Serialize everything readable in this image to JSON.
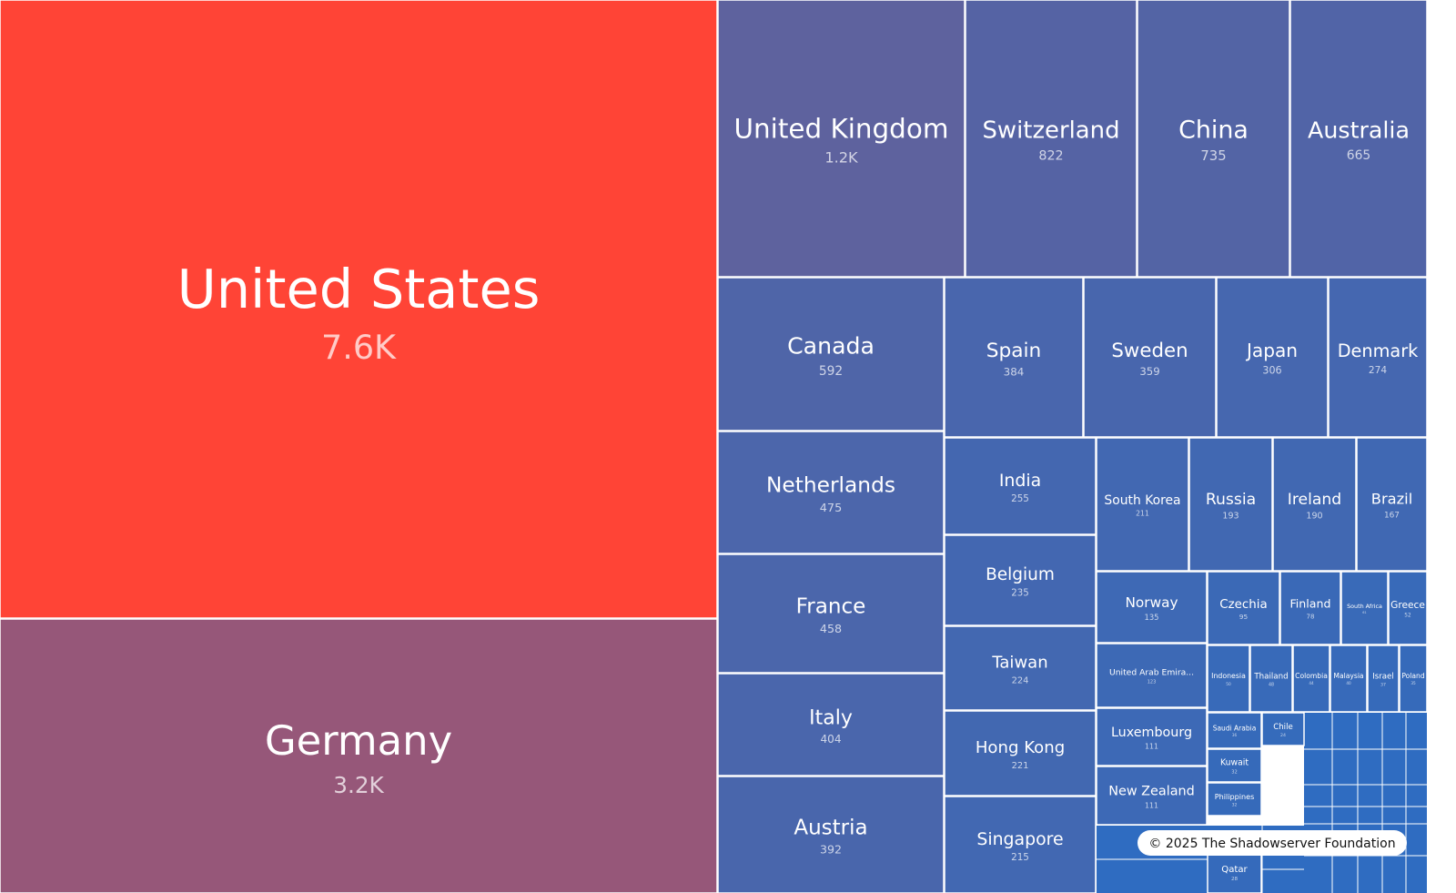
{
  "chart_data": {
    "type": "treemap",
    "categories": [
      "United States",
      "Germany",
      "United Kingdom",
      "Switzerland",
      "China",
      "Australia",
      "Canada",
      "Netherlands",
      "France",
      "Italy",
      "Austria",
      "Spain",
      "Sweden",
      "Japan",
      "Denmark",
      "India",
      "Belgium",
      "Taiwan",
      "Hong Kong",
      "Singapore",
      "South Korea",
      "Russia",
      "Ireland",
      "Brazil",
      "Norway",
      "United Arab Emira...",
      "Luxembourg",
      "New Zealand",
      "Czechia",
      "Finland",
      "South Africa",
      "Greece",
      "Indonesia",
      "Thailand",
      "Colombia",
      "Malaysia",
      "Israel",
      "Poland",
      "Saudi Arabia",
      "Chile",
      "Kuwait",
      "Philippines",
      "Qatar"
    ],
    "values": [
      7600,
      3200,
      1200,
      822,
      735,
      665,
      592,
      475,
      458,
      404,
      392,
      384,
      359,
      306,
      274,
      255,
      235,
      224,
      221,
      215,
      211,
      193,
      190,
      167,
      135,
      123,
      111,
      111,
      95,
      78,
      61,
      52,
      50,
      48,
      44,
      40,
      37,
      35,
      36,
      24,
      32,
      32,
      28
    ],
    "value_labels": [
      "7.6K",
      "3.2K",
      "1.2K",
      "822",
      "735",
      "665",
      "592",
      "475",
      "458",
      "404",
      "392",
      "384",
      "359",
      "306",
      "274",
      "255",
      "235",
      "224",
      "221",
      "215",
      "211",
      "193",
      "190",
      "167",
      "135",
      "123",
      "111",
      "111",
      "95",
      "78",
      "61",
      "52",
      "50",
      "48",
      "44",
      "40",
      "37",
      "35",
      "36",
      "24",
      "32",
      "32",
      "28"
    ],
    "color_stops": [
      "#2e6cc0",
      "#6a5f95",
      "#ff4436"
    ],
    "attribution": "© 2025 The Shadowserver Foundation"
  }
}
